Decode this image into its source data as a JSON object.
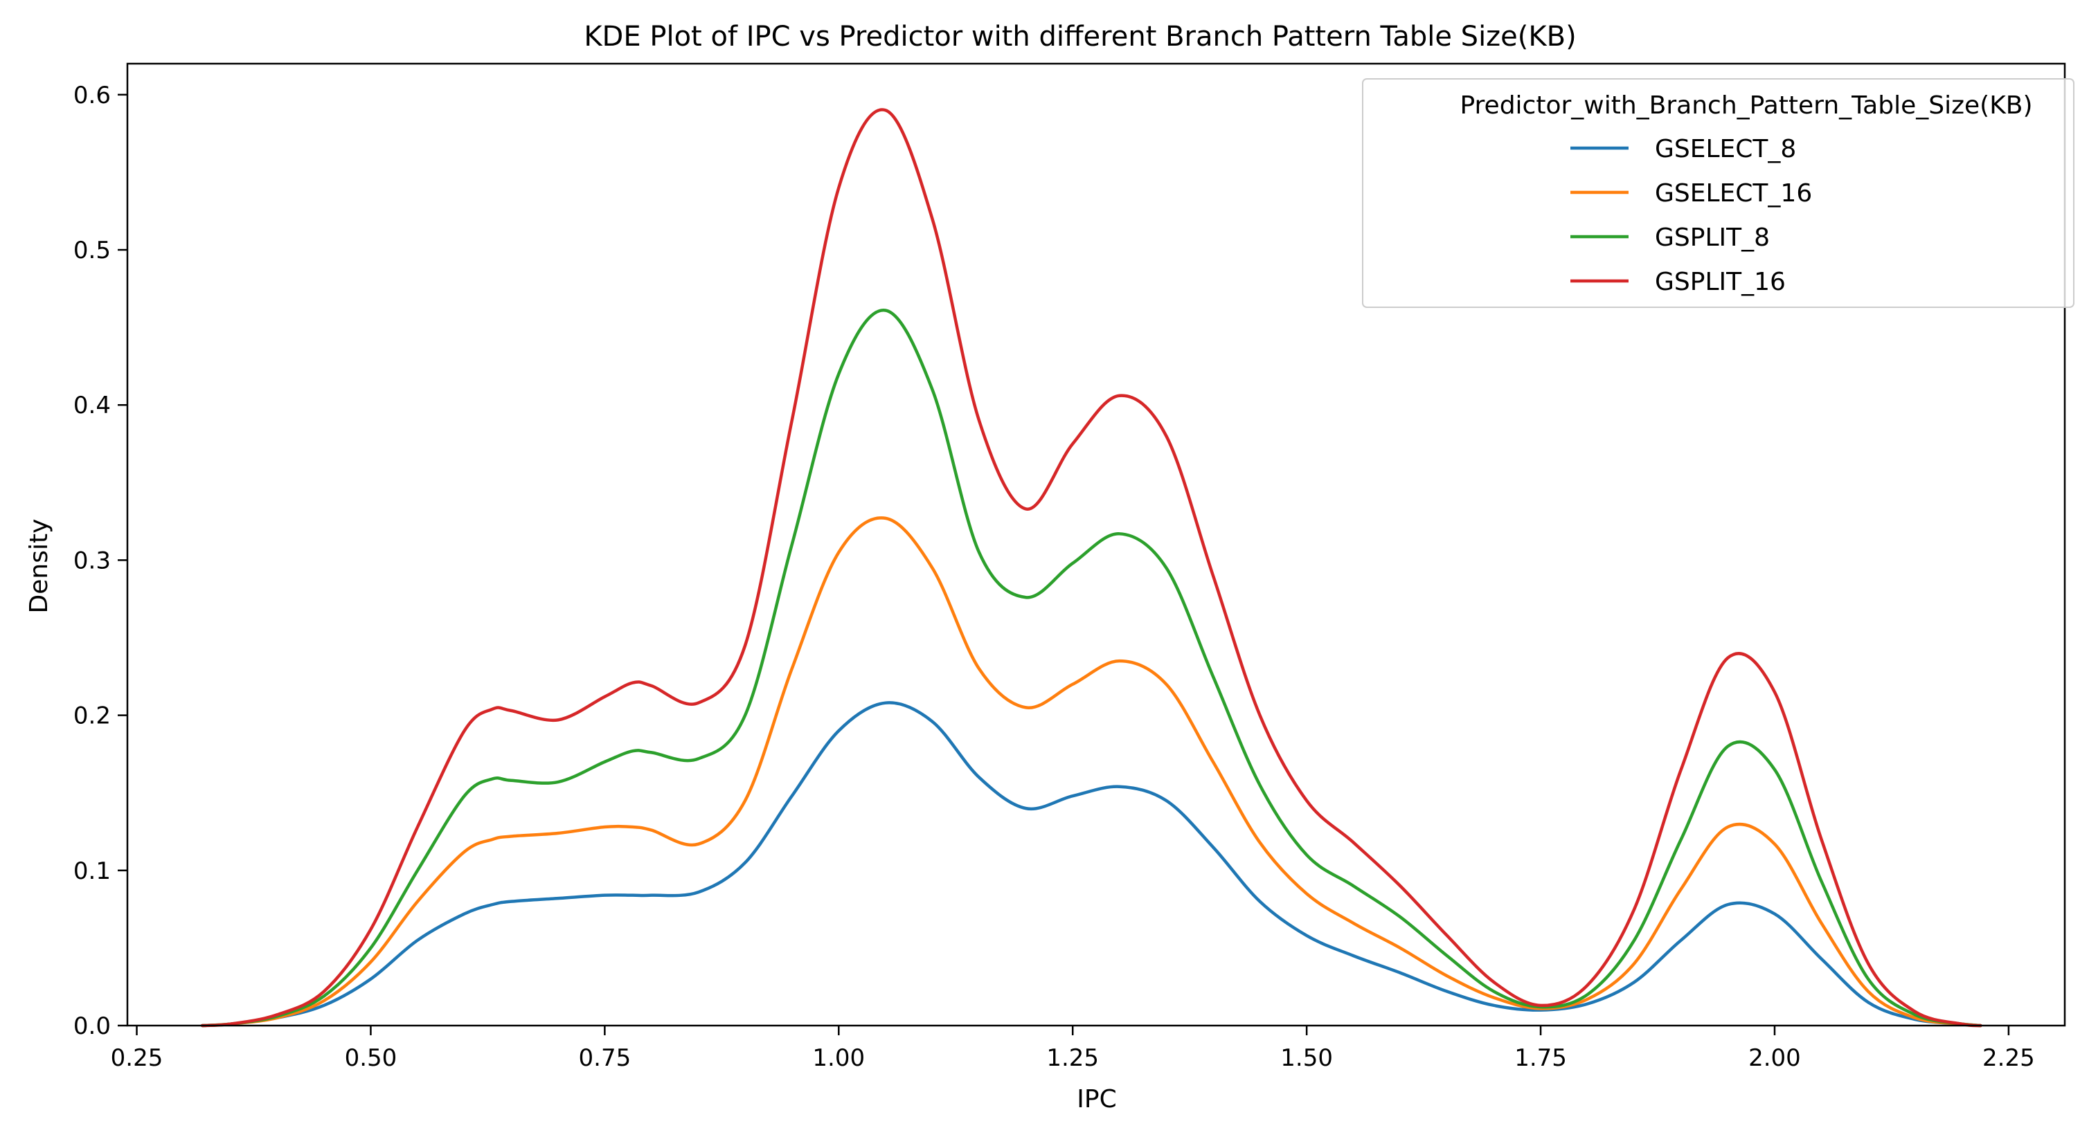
{
  "chart_data": {
    "type": "line",
    "title": "KDE Plot of IPC vs Predictor with different Branch Pattern Table Size(KB)",
    "xlabel": "IPC",
    "ylabel": "Density",
    "xlim": [
      0.24,
      2.31
    ],
    "ylim": [
      0.0,
      0.62
    ],
    "xticks": [
      0.25,
      0.5,
      0.75,
      1.0,
      1.25,
      1.5,
      1.75,
      2.0,
      2.25
    ],
    "xtick_labels": [
      "0.25",
      "0.50",
      "0.75",
      "1.00",
      "1.25",
      "1.50",
      "1.75",
      "2.00",
      "2.25"
    ],
    "yticks": [
      0.0,
      0.1,
      0.2,
      0.3,
      0.4,
      0.5,
      0.6
    ],
    "ytick_labels": [
      "0.0",
      "0.1",
      "0.2",
      "0.3",
      "0.4",
      "0.5",
      "0.6"
    ],
    "grid": false,
    "legend": {
      "title": "Predictor_with_Branch_Pattern_Table_Size(KB)",
      "placement": "top-right"
    },
    "x": [
      0.32,
      0.35,
      0.4,
      0.45,
      0.5,
      0.55,
      0.6,
      0.63,
      0.65,
      0.7,
      0.75,
      0.78,
      0.8,
      0.85,
      0.9,
      0.95,
      1.0,
      1.05,
      1.1,
      1.15,
      1.2,
      1.25,
      1.3,
      1.35,
      1.4,
      1.45,
      1.5,
      1.55,
      1.6,
      1.65,
      1.7,
      1.75,
      1.8,
      1.85,
      1.9,
      1.95,
      2.0,
      2.05,
      2.1,
      2.15,
      2.2,
      2.22
    ],
    "series": [
      {
        "name": "GSELECT_8",
        "color": "#1f77b4",
        "values": [
          0.0,
          0.001,
          0.005,
          0.013,
          0.03,
          0.055,
          0.072,
          0.078,
          0.08,
          0.082,
          0.084,
          0.084,
          0.084,
          0.086,
          0.105,
          0.148,
          0.19,
          0.208,
          0.196,
          0.16,
          0.14,
          0.148,
          0.154,
          0.145,
          0.115,
          0.08,
          0.058,
          0.045,
          0.034,
          0.022,
          0.013,
          0.01,
          0.014,
          0.028,
          0.055,
          0.078,
          0.072,
          0.043,
          0.015,
          0.004,
          0.001,
          0.0
        ]
      },
      {
        "name": "GSELECT_16",
        "color": "#ff7f0e",
        "values": [
          0.0,
          0.001,
          0.005,
          0.016,
          0.041,
          0.08,
          0.112,
          0.12,
          0.122,
          0.124,
          0.128,
          0.128,
          0.126,
          0.117,
          0.145,
          0.23,
          0.305,
          0.327,
          0.295,
          0.23,
          0.205,
          0.22,
          0.235,
          0.22,
          0.17,
          0.118,
          0.085,
          0.066,
          0.05,
          0.032,
          0.018,
          0.011,
          0.017,
          0.04,
          0.088,
          0.128,
          0.117,
          0.066,
          0.022,
          0.005,
          0.001,
          0.0
        ]
      },
      {
        "name": "GSPLIT_8",
        "color": "#2ca02c",
        "values": [
          0.0,
          0.001,
          0.006,
          0.019,
          0.05,
          0.1,
          0.148,
          0.159,
          0.158,
          0.157,
          0.17,
          0.177,
          0.176,
          0.172,
          0.2,
          0.31,
          0.42,
          0.461,
          0.41,
          0.305,
          0.276,
          0.298,
          0.317,
          0.295,
          0.225,
          0.155,
          0.11,
          0.09,
          0.07,
          0.045,
          0.022,
          0.012,
          0.02,
          0.055,
          0.12,
          0.18,
          0.165,
          0.093,
          0.03,
          0.007,
          0.001,
          0.0
        ]
      },
      {
        "name": "GSPLIT_16",
        "color": "#d62728",
        "values": [
          0.0,
          0.001,
          0.007,
          0.022,
          0.062,
          0.128,
          0.19,
          0.204,
          0.203,
          0.197,
          0.212,
          0.221,
          0.219,
          0.208,
          0.245,
          0.39,
          0.54,
          0.59,
          0.52,
          0.39,
          0.333,
          0.375,
          0.406,
          0.38,
          0.29,
          0.2,
          0.145,
          0.118,
          0.09,
          0.058,
          0.028,
          0.013,
          0.026,
          0.075,
          0.165,
          0.237,
          0.215,
          0.12,
          0.04,
          0.009,
          0.001,
          0.0
        ]
      }
    ]
  }
}
